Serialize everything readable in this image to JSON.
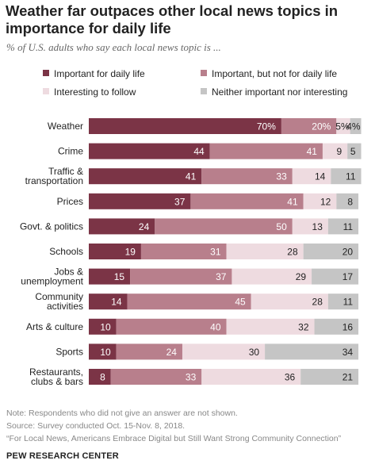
{
  "title": "Weather far outpaces other local news topics in importance for daily life",
  "subtitle": "% of U.S. adults who say each local news topic is ...",
  "colors": {
    "important_daily": "#7b3446",
    "important_not_daily": "#b87f8c",
    "interesting": "#eedbe0",
    "neither": "#c5c5c5"
  },
  "chart_data": {
    "type": "bar",
    "orientation": "horizontal",
    "stacked": true,
    "categories": [
      "Weather",
      "Crime",
      "Traffic & transportation",
      "Prices",
      "Govt. & politics",
      "Schools",
      "Jobs & unemployment",
      "Community activities",
      "Arts & culture",
      "Sports",
      "Restaurants, clubs & bars"
    ],
    "category_lines": [
      [
        "Weather"
      ],
      [
        "Crime"
      ],
      [
        "Traffic &",
        "transportation"
      ],
      [
        "Prices"
      ],
      [
        "Govt. & politics"
      ],
      [
        "Schools"
      ],
      [
        "Jobs &",
        "unemployment"
      ],
      [
        "Community",
        "activities"
      ],
      [
        "Arts & culture"
      ],
      [
        "Sports"
      ],
      [
        "Restaurants,",
        "clubs & bars"
      ]
    ],
    "series": [
      {
        "name": "Important for daily life",
        "values": [
          70,
          44,
          41,
          37,
          24,
          19,
          15,
          14,
          10,
          10,
          8
        ]
      },
      {
        "name": "Important, but not for daily life",
        "values": [
          20,
          41,
          33,
          41,
          50,
          31,
          37,
          45,
          40,
          24,
          33
        ]
      },
      {
        "name": "Interesting to follow",
        "values": [
          5,
          9,
          14,
          12,
          13,
          28,
          29,
          28,
          32,
          30,
          36
        ]
      },
      {
        "name": "Neither important nor interesting",
        "values": [
          4,
          5,
          11,
          8,
          11,
          20,
          17,
          11,
          16,
          34,
          21
        ]
      }
    ],
    "first_row_labels": [
      "70%",
      "20%",
      "5%",
      "4%"
    ],
    "xlim": [
      0,
      100
    ],
    "legend_position": "top",
    "grid": false
  },
  "footer": {
    "note": "Note: Respondents who did not give an answer are not shown.",
    "source": "Source: Survey conducted Oct. 15-Nov. 8, 2018.",
    "report": "“For Local News, Americans Embrace Digital but Still Want Strong Community Connection”",
    "brand": "PEW RESEARCH CENTER"
  }
}
